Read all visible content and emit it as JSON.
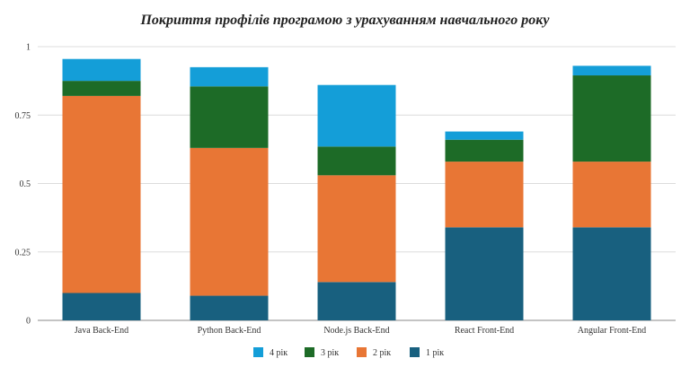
{
  "chart_data": {
    "type": "bar",
    "stacked": true,
    "title": "Покриття профілів програмою з урахуванням навчального року",
    "xlabel": "",
    "ylabel": "",
    "ylim": [
      0,
      1
    ],
    "yticks": [
      "0",
      "0.25",
      "0.5",
      "0.75",
      "1"
    ],
    "ytick_values": [
      0,
      0.25,
      0.5,
      0.75,
      1
    ],
    "grid": true,
    "legend_position": "bottom",
    "categories": [
      "Java Back-End",
      "Python Back-End",
      "Node.js Back-End",
      "React Front-End",
      "Angular Front-End"
    ],
    "series": [
      {
        "name": "1 рік",
        "color": "#18607f",
        "values": [
          0.1,
          0.09,
          0.14,
          0.34,
          0.34
        ]
      },
      {
        "name": "2 рік",
        "color": "#e87635",
        "values": [
          0.72,
          0.54,
          0.39,
          0.24,
          0.24
        ]
      },
      {
        "name": "3 рік",
        "color": "#1d6b27",
        "values": [
          0.055,
          0.225,
          0.105,
          0.08,
          0.315
        ]
      },
      {
        "name": "4 рік",
        "color": "#149ed8",
        "values": [
          0.08,
          0.07,
          0.225,
          0.03,
          0.035
        ]
      }
    ],
    "legend_order": [
      3,
      2,
      1,
      0
    ]
  }
}
